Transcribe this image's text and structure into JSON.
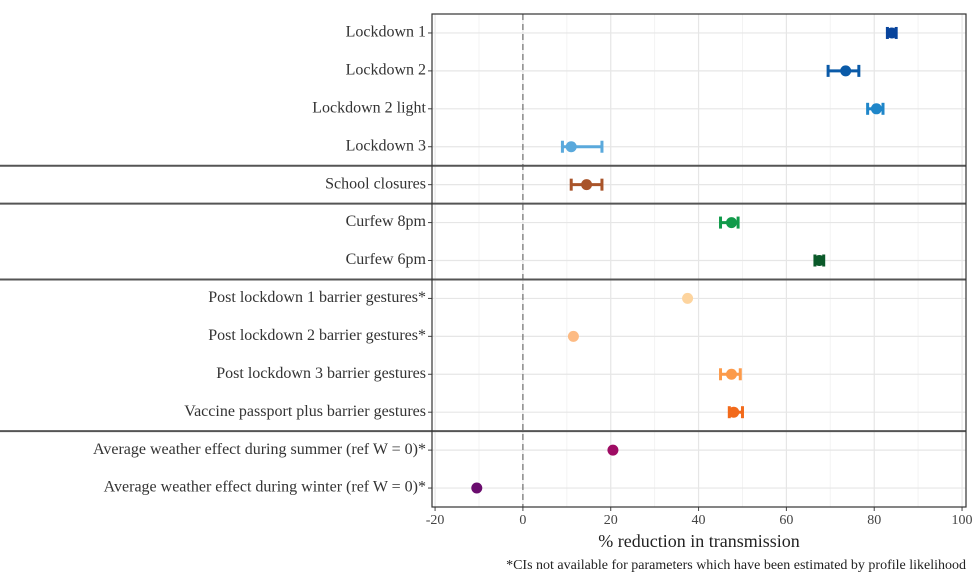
{
  "chart_data": {
    "type": "forest",
    "categories": [
      "Lockdown 1",
      "Lockdown 2",
      "Lockdown 2 light",
      "Lockdown 3",
      "School closures",
      "Curfew 8pm",
      "Curfew 6pm",
      "Post lockdown 1 barrier gestures*",
      "Post lockdown 2 barrier gestures*",
      "Post lockdown 3 barrier gestures",
      "Vaccine passport plus barrier gestures",
      "Average weather effect during summer (ref W = 0)*",
      "Average weather effect during winter (ref W = 0)*"
    ],
    "values": [
      84,
      73.5,
      80.5,
      11,
      14.5,
      47.5,
      67.5,
      37.5,
      11.5,
      47.5,
      48,
      20.5,
      -10.5
    ],
    "lower": [
      83,
      69.5,
      78.5,
      9,
      11,
      45,
      66.5,
      null,
      null,
      45,
      47,
      null,
      null
    ],
    "upper": [
      85,
      76.5,
      82,
      18,
      18,
      49,
      68.5,
      null,
      null,
      49.5,
      50,
      null,
      null
    ],
    "colors": [
      "#08449c",
      "#0a5aa8",
      "#1f86c9",
      "#5aa9dc",
      "#a9542a",
      "#119a4a",
      "#0b5a2a",
      "#fdd49e",
      "#fdbb84",
      "#fc9a4a",
      "#f26a1b",
      "#9e0b63",
      "#6a0c6e"
    ],
    "xlim": [
      -20.7,
      100.9
    ],
    "xticks": [
      -20,
      0,
      20,
      40,
      60,
      80,
      100
    ],
    "reference_line": 0,
    "xlabel": "% reduction in transmission",
    "caption": "*CIs not available for parameters which have been estimated by profile likelihood",
    "grid": true
  }
}
